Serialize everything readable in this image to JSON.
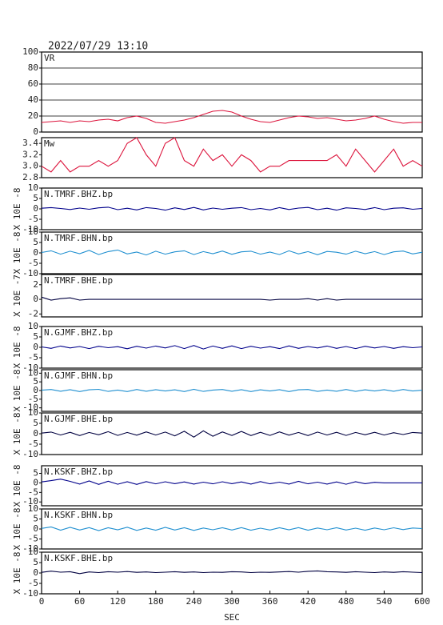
{
  "header": {
    "timestamp": "2022/07/29 13:10"
  },
  "chart_data": [
    {
      "type": "line",
      "title": "VR",
      "xlim": [
        0,
        600
      ],
      "ylim": [
        0,
        100
      ],
      "yticks": [
        0,
        20,
        40,
        60,
        80,
        100
      ],
      "grid": true,
      "x": [
        0,
        15,
        30,
        45,
        60,
        75,
        90,
        105,
        120,
        135,
        150,
        165,
        180,
        195,
        210,
        225,
        240,
        255,
        270,
        285,
        300,
        315,
        330,
        345,
        360,
        375,
        390,
        405,
        420,
        435,
        450,
        465,
        480,
        495,
        510,
        525,
        540,
        555,
        570,
        585,
        600
      ],
      "series": [
        {
          "color": "#dc143c",
          "values": [
            12,
            13,
            14,
            12,
            14,
            13,
            15,
            16,
            14,
            18,
            20,
            17,
            12,
            11,
            13,
            15,
            18,
            22,
            26,
            27,
            25,
            20,
            16,
            13,
            12,
            15,
            18,
            20,
            19,
            17,
            18,
            16,
            14,
            15,
            17,
            20,
            16,
            13,
            11,
            12,
            12
          ]
        }
      ]
    },
    {
      "type": "line",
      "title": "Mw",
      "xlim": [
        0,
        600
      ],
      "ylim": [
        2.8,
        3.5
      ],
      "yticks": [
        {
          "value": 2.8,
          "label": "2.8"
        },
        {
          "value": 3,
          "label": "3.0"
        },
        {
          "value": 3.2,
          "label": "3.2"
        },
        {
          "value": 3.4,
          "label": "3.4"
        }
      ],
      "grid": false,
      "x": [
        0,
        15,
        30,
        45,
        60,
        75,
        90,
        105,
        120,
        135,
        150,
        165,
        180,
        195,
        210,
        225,
        240,
        255,
        270,
        285,
        300,
        315,
        330,
        345,
        360,
        375,
        390,
        405,
        420,
        435,
        450,
        465,
        480,
        495,
        510,
        525,
        540,
        555,
        570,
        585,
        600
      ],
      "series": [
        {
          "color": "#dc143c",
          "values": [
            3.0,
            2.9,
            3.1,
            2.9,
            3.0,
            3.0,
            3.1,
            3.0,
            3.1,
            3.4,
            3.5,
            3.2,
            3.0,
            3.4,
            3.5,
            3.1,
            3.0,
            3.3,
            3.1,
            3.2,
            3.0,
            3.2,
            3.1,
            2.9,
            3.0,
            3.0,
            3.1,
            3.1,
            3.1,
            3.1,
            3.1,
            3.2,
            3.0,
            3.3,
            3.1,
            2.9,
            3.1,
            3.3,
            3.0,
            3.1,
            3.0
          ]
        }
      ]
    },
    {
      "type": "line",
      "title": "N.TMRF.BHZ.bp",
      "ylabel": "X 10E -8",
      "xlim": [
        0,
        600
      ],
      "ylim": [
        -10,
        10
      ],
      "yticks": [
        -10,
        -5,
        0,
        5,
        10
      ],
      "x": [
        0,
        15,
        30,
        45,
        60,
        75,
        90,
        105,
        120,
        135,
        150,
        165,
        180,
        195,
        210,
        225,
        240,
        255,
        270,
        285,
        300,
        315,
        330,
        345,
        360,
        375,
        390,
        405,
        420,
        435,
        450,
        465,
        480,
        495,
        510,
        525,
        540,
        555,
        570,
        585,
        600
      ],
      "series": [
        {
          "color": "#00008b",
          "values": [
            0.3,
            0.6,
            0.2,
            -0.3,
            0.4,
            -0.2,
            0.5,
            0.8,
            -0.4,
            0.3,
            -0.5,
            0.6,
            0.2,
            -0.6,
            0.5,
            -0.3,
            0.7,
            -0.5,
            0.4,
            -0.2,
            0.3,
            0.6,
            -0.4,
            0.2,
            -0.5,
            0.6,
            -0.3,
            0.4,
            0.7,
            -0.4,
            0.3,
            -0.6,
            0.5,
            0.2,
            -0.3,
            0.6,
            -0.4,
            0.3,
            0.5,
            -0.2,
            0.2
          ]
        }
      ]
    },
    {
      "type": "line",
      "title": "N.TMRF.BHN.bp",
      "ylabel": "X 10E -8",
      "xlim": [
        0,
        600
      ],
      "ylim": [
        -10,
        10
      ],
      "yticks": [
        -10,
        -5,
        0,
        5,
        10
      ],
      "x": [
        0,
        15,
        30,
        45,
        60,
        75,
        90,
        105,
        120,
        135,
        150,
        165,
        180,
        195,
        210,
        225,
        240,
        255,
        270,
        285,
        300,
        315,
        330,
        345,
        360,
        375,
        390,
        405,
        420,
        435,
        450,
        465,
        480,
        495,
        510,
        525,
        540,
        555,
        570,
        585,
        600
      ],
      "series": [
        {
          "color": "#1f8fd0",
          "values": [
            0.2,
            1.0,
            -0.6,
            0.8,
            -0.4,
            1.2,
            -0.8,
            0.6,
            1.4,
            -0.5,
            0.4,
            -1.0,
            0.8,
            -0.6,
            0.5,
            1.0,
            -0.8,
            0.6,
            -0.4,
            0.9,
            -0.7,
            0.5,
            0.8,
            -0.6,
            0.4,
            -0.8,
            1.0,
            -0.5,
            0.6,
            -0.9,
            0.7,
            0.3,
            -0.6,
            0.8,
            -0.4,
            0.6,
            -0.8,
            0.5,
            0.9,
            -0.5,
            0.3
          ]
        }
      ]
    },
    {
      "type": "line",
      "title": "N.TMRF.BHE.bp",
      "ylabel": "X 10E -7",
      "xlim": [
        0,
        600
      ],
      "ylim": [
        -2.4,
        3.4
      ],
      "yticks": [
        -2,
        0,
        2
      ],
      "x": [
        0,
        15,
        30,
        45,
        60,
        75,
        90,
        105,
        120,
        135,
        150,
        165,
        180,
        195,
        210,
        225,
        240,
        255,
        270,
        285,
        300,
        315,
        330,
        345,
        360,
        375,
        390,
        405,
        420,
        435,
        450,
        465,
        480,
        495,
        510,
        525,
        540,
        555,
        570,
        585,
        600
      ],
      "series": [
        {
          "color": "#000040",
          "values": [
            0.3,
            -0.1,
            0.1,
            0.2,
            -0.1,
            0.0,
            0.0,
            0.0,
            0.0,
            0.0,
            0.0,
            0.0,
            0.0,
            0.0,
            0.0,
            0.0,
            0.0,
            0.0,
            0.0,
            0.0,
            0.0,
            0.0,
            0.0,
            0.0,
            -0.1,
            0.0,
            0.0,
            0.0,
            0.1,
            -0.1,
            0.1,
            -0.1,
            0.0,
            0.0,
            0.0,
            0.0,
            0.0,
            0.0,
            0.0,
            0.0,
            0.0
          ]
        }
      ]
    },
    {
      "type": "line",
      "title": "N.GJMF.BHZ.bp",
      "ylabel": "X 10E -8",
      "xlim": [
        0,
        600
      ],
      "ylim": [
        -10,
        10
      ],
      "yticks": [
        -10,
        -5,
        0,
        5,
        10
      ],
      "x": [
        0,
        15,
        30,
        45,
        60,
        75,
        90,
        105,
        120,
        135,
        150,
        165,
        180,
        195,
        210,
        225,
        240,
        255,
        270,
        285,
        300,
        315,
        330,
        345,
        360,
        375,
        390,
        405,
        420,
        435,
        450,
        465,
        480,
        495,
        510,
        525,
        540,
        555,
        570,
        585,
        600
      ],
      "series": [
        {
          "color": "#00008b",
          "values": [
            0.2,
            -0.5,
            0.6,
            -0.3,
            0.4,
            -0.6,
            0.5,
            -0.2,
            0.3,
            -0.7,
            0.5,
            -0.4,
            0.6,
            -0.3,
            0.8,
            -0.6,
            0.9,
            -0.8,
            0.6,
            -0.5,
            0.7,
            -0.6,
            0.5,
            -0.4,
            0.3,
            -0.6,
            0.7,
            -0.5,
            0.4,
            -0.3,
            0.6,
            -0.5,
            0.4,
            -0.6,
            0.5,
            -0.3,
            0.4,
            -0.5,
            0.3,
            -0.2,
            0.2
          ]
        }
      ]
    },
    {
      "type": "line",
      "title": "N.GJMF.BHN.bp",
      "ylabel": "X 10E -8",
      "xlim": [
        0,
        600
      ],
      "ylim": [
        -12,
        12
      ],
      "yticks": [
        -10,
        -5,
        0,
        5,
        10
      ],
      "x": [
        0,
        15,
        30,
        45,
        60,
        75,
        90,
        105,
        120,
        135,
        150,
        165,
        180,
        195,
        210,
        225,
        240,
        255,
        270,
        285,
        300,
        315,
        330,
        345,
        360,
        375,
        390,
        405,
        420,
        435,
        450,
        465,
        480,
        495,
        510,
        525,
        540,
        555,
        570,
        585,
        600
      ],
      "series": [
        {
          "color": "#1f8fd0",
          "values": [
            0.2,
            0.6,
            -0.4,
            0.5,
            -0.6,
            0.4,
            0.7,
            -0.5,
            0.3,
            -0.6,
            0.6,
            -0.4,
            0.5,
            -0.3,
            0.4,
            -0.6,
            0.7,
            -0.5,
            0.3,
            0.6,
            -0.4,
            0.5,
            -0.6,
            0.4,
            -0.3,
            0.5,
            -0.6,
            0.4,
            0.6,
            -0.5,
            0.3,
            -0.4,
            0.6,
            -0.5,
            0.4,
            -0.3,
            0.5,
            -0.4,
            0.6,
            -0.3,
            0.2
          ]
        }
      ]
    },
    {
      "type": "line",
      "title": "N.GJMF.BHE.bp",
      "ylabel": "X 10E -8",
      "xlim": [
        0,
        600
      ],
      "ylim": [
        -10,
        10
      ],
      "yticks": [
        -10,
        -5,
        0,
        5,
        10
      ],
      "x": [
        0,
        15,
        30,
        45,
        60,
        75,
        90,
        105,
        120,
        135,
        150,
        165,
        180,
        195,
        210,
        225,
        240,
        255,
        270,
        285,
        300,
        315,
        330,
        345,
        360,
        375,
        390,
        405,
        420,
        435,
        450,
        465,
        480,
        495,
        510,
        525,
        540,
        555,
        570,
        585,
        600
      ],
      "series": [
        {
          "color": "#000040",
          "values": [
            0.3,
            0.8,
            -0.6,
            0.7,
            -0.9,
            0.6,
            -0.5,
            1.0,
            -0.8,
            0.6,
            -0.7,
            0.9,
            -0.6,
            0.8,
            -1.0,
            1.2,
            -1.6,
            1.4,
            -1.2,
            0.9,
            -0.8,
            1.1,
            -0.9,
            0.7,
            -0.8,
            0.9,
            -0.7,
            0.6,
            -0.9,
            0.8,
            -0.6,
            0.7,
            -0.8,
            0.6,
            -0.5,
            0.7,
            -0.6,
            0.5,
            -0.4,
            0.6,
            0.3
          ]
        }
      ]
    },
    {
      "type": "line",
      "title": "N.KSKF.BHZ.bp",
      "ylabel": "X 10E -8",
      "xlim": [
        0,
        600
      ],
      "ylim": [
        -12,
        9
      ],
      "yticks": [
        -10,
        -5,
        0,
        5
      ],
      "x": [
        0,
        15,
        30,
        45,
        60,
        75,
        90,
        105,
        120,
        135,
        150,
        165,
        180,
        195,
        210,
        225,
        240,
        255,
        270,
        285,
        300,
        315,
        330,
        345,
        360,
        375,
        390,
        405,
        420,
        435,
        450,
        465,
        480,
        495,
        510,
        525,
        540,
        555,
        570,
        585,
        600
      ],
      "series": [
        {
          "color": "#00008b",
          "values": [
            0.5,
            1.2,
            2.0,
            0.8,
            -0.6,
            1.0,
            -0.8,
            0.9,
            -0.7,
            0.6,
            -0.8,
            0.7,
            -0.5,
            0.6,
            -0.4,
            0.5,
            -0.6,
            0.4,
            -0.5,
            0.6,
            -0.4,
            0.5,
            -0.6,
            0.7,
            -0.5,
            0.4,
            -0.6,
            0.8,
            -0.5,
            0.4,
            -0.6,
            0.5,
            -0.7,
            0.6,
            -0.4,
            0.3,
            0.0,
            0.0,
            0.0,
            0.0,
            0.0
          ]
        }
      ]
    },
    {
      "type": "line",
      "title": "N.KSKF.BHN.bp",
      "ylabel": "X 10E -8",
      "xlim": [
        0,
        600
      ],
      "ylim": [
        -10,
        10
      ],
      "yticks": [
        -10,
        -5,
        0,
        5,
        10
      ],
      "x": [
        0,
        15,
        30,
        45,
        60,
        75,
        90,
        105,
        120,
        135,
        150,
        165,
        180,
        195,
        210,
        225,
        240,
        255,
        270,
        285,
        300,
        315,
        330,
        345,
        360,
        375,
        390,
        405,
        420,
        435,
        450,
        465,
        480,
        495,
        510,
        525,
        540,
        555,
        570,
        585,
        600
      ],
      "series": [
        {
          "color": "#1f8fd0",
          "values": [
            0.3,
            1.0,
            -0.6,
            0.8,
            -0.5,
            0.7,
            -0.8,
            0.6,
            -0.4,
            0.9,
            -0.7,
            0.5,
            -0.6,
            0.8,
            -0.5,
            0.6,
            -0.7,
            0.5,
            -0.4,
            0.6,
            -0.5,
            0.7,
            -0.6,
            0.4,
            -0.5,
            0.6,
            -0.4,
            0.7,
            -0.6,
            0.5,
            -0.4,
            0.6,
            -0.5,
            0.4,
            -0.6,
            0.5,
            -0.4,
            0.6,
            -0.3,
            0.5,
            0.2
          ]
        }
      ]
    },
    {
      "type": "line",
      "title": "N.KSKF.BHE.bp",
      "ylabel": "X 10E -8",
      "xlim": [
        0,
        600
      ],
      "ylim": [
        -10,
        10
      ],
      "yticks": [
        -10,
        -5,
        0,
        5,
        10
      ],
      "xticks": [
        0,
        60,
        120,
        180,
        240,
        300,
        360,
        420,
        480,
        540,
        600
      ],
      "xlabel": "SEC",
      "x": [
        0,
        15,
        30,
        45,
        60,
        75,
        90,
        105,
        120,
        135,
        150,
        165,
        180,
        195,
        210,
        225,
        240,
        255,
        270,
        285,
        300,
        315,
        330,
        345,
        360,
        375,
        390,
        405,
        420,
        435,
        450,
        465,
        480,
        495,
        510,
        525,
        540,
        555,
        570,
        585,
        600
      ],
      "series": [
        {
          "color": "#000040",
          "values": [
            0.3,
            0.9,
            0.4,
            0.6,
            -0.3,
            0.5,
            0.2,
            0.6,
            0.4,
            0.7,
            0.3,
            0.5,
            0.2,
            0.4,
            0.6,
            0.3,
            0.5,
            0.2,
            0.4,
            0.3,
            0.6,
            0.5,
            0.2,
            0.4,
            0.3,
            0.5,
            0.7,
            0.4,
            0.8,
            1.0,
            0.6,
            0.5,
            0.3,
            0.6,
            0.4,
            0.2,
            0.5,
            0.3,
            0.6,
            0.4,
            0.2
          ]
        }
      ]
    }
  ]
}
